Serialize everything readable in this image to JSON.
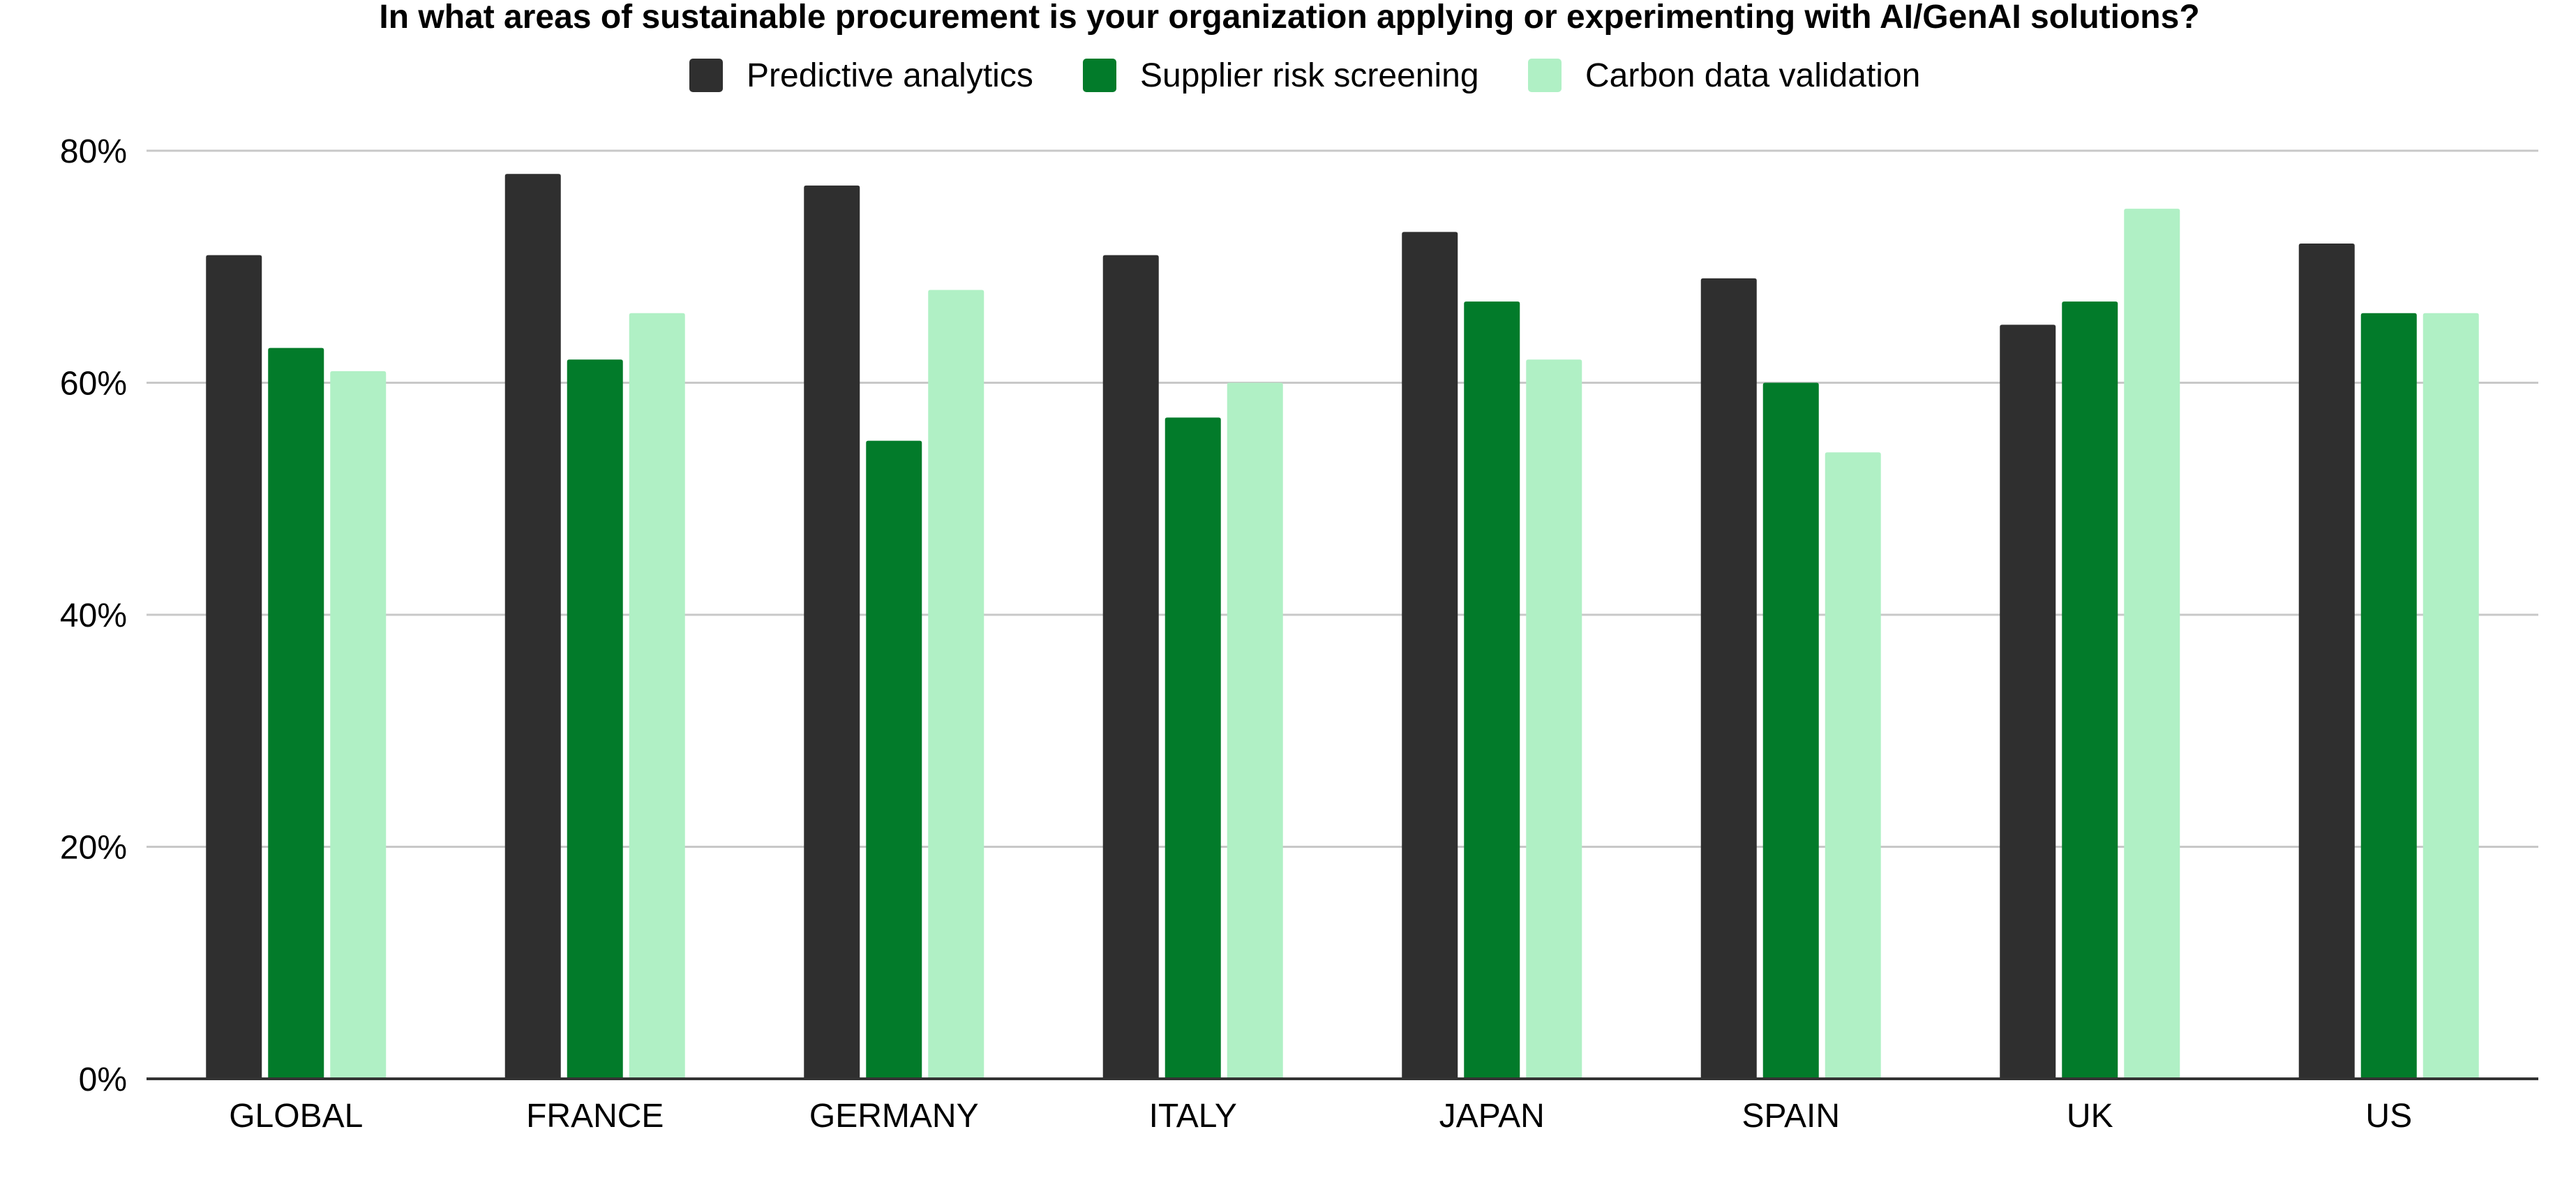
{
  "chart_data": {
    "type": "bar",
    "title": "In what areas of sustainable procurement is your organization applying or experimenting with AI/GenAI solutions?",
    "xlabel": "",
    "ylabel": "",
    "ylim": [
      0,
      80
    ],
    "yticks": [
      0,
      20,
      40,
      60,
      80
    ],
    "ytick_labels": [
      "0%",
      "20%",
      "40%",
      "60%",
      "80%"
    ],
    "grid": true,
    "legend_position": "top-center",
    "categories": [
      "GLOBAL",
      "FRANCE",
      "GERMANY",
      "ITALY",
      "JAPAN",
      "SPAIN",
      "UK",
      "US"
    ],
    "series": [
      {
        "name": "Predictive analytics",
        "color": "#2f2f2f",
        "values": [
          71,
          78,
          77,
          71,
          73,
          69,
          65,
          72
        ]
      },
      {
        "name": "Supplier risk screening",
        "color": "#027b2a",
        "values": [
          63,
          62,
          55,
          57,
          67,
          60,
          67,
          66
        ]
      },
      {
        "name": "Carbon data validation",
        "color": "#b0f0c5",
        "values": [
          61,
          66,
          68,
          60,
          62,
          54,
          75,
          66
        ]
      }
    ]
  }
}
